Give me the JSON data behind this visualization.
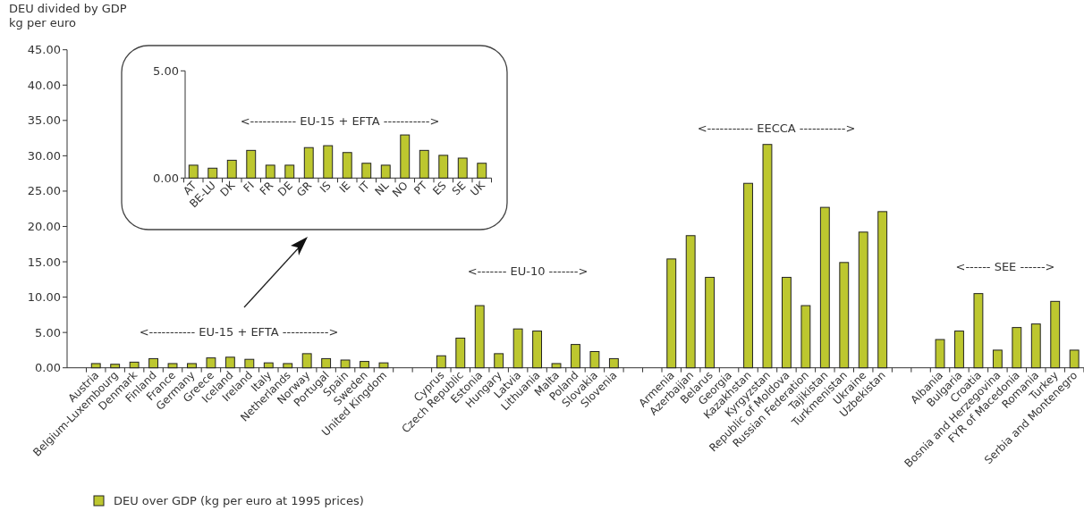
{
  "chart_data": [
    {
      "type": "bar",
      "title": "DEU divided by GDP",
      "ylabel": "kg per euro",
      "categories": [
        "Austria",
        "Belgium-Luxembourg",
        "Denmark",
        "Finland",
        "France",
        "Germany",
        "Greece",
        "Iceland",
        "Ireland",
        "Italy",
        "Netherlands",
        "Norway",
        "Portugal",
        "Spain",
        "Sweden",
        "United Kingdom",
        null,
        null,
        "Cyprus",
        "Czech Republic",
        "Estonia",
        "Hungary",
        "Latvia",
        "Lithuania",
        "Malta",
        "Poland",
        "Slovakia",
        "Slovenia",
        null,
        null,
        "Armenia",
        "Azerbaijan",
        "Belarus",
        "Georgia",
        "Kazakhstan",
        "Kyrgyzstan",
        "Republic of Moldova",
        "Russian Federation",
        "Tajikistan",
        "Turkmenistan",
        "Ukraine",
        "Uzbekistan",
        null,
        null,
        "Albania",
        "Bulgaria",
        "Croatia",
        "Bosnia and Herzegovina",
        "FYR of Macedonia",
        "Romania",
        "Turkey",
        "Serbia and Montenegro"
      ],
      "series": [
        {
          "name": "DEU over GDP (kg per euro at 1995 prices)",
          "color": "#bdc72f",
          "values": [
            0.6,
            0.5,
            0.8,
            1.3,
            0.6,
            0.6,
            1.4,
            1.5,
            1.2,
            0.7,
            0.6,
            2.0,
            1.3,
            1.1,
            0.9,
            0.7,
            null,
            null,
            1.7,
            4.2,
            8.8,
            2.0,
            5.5,
            5.2,
            0.6,
            3.3,
            2.3,
            1.3,
            null,
            null,
            15.4,
            18.7,
            12.8,
            null,
            26.1,
            31.6,
            12.8,
            8.8,
            22.7,
            14.9,
            19.2,
            22.1,
            null,
            null,
            4.0,
            5.2,
            10.5,
            2.5,
            5.7,
            6.2,
            9.4,
            2.5
          ]
        }
      ],
      "ylim": [
        0,
        45
      ],
      "yticks": [
        {
          "value": 0,
          "label": "0.00"
        },
        {
          "value": 5,
          "label": "5.00"
        },
        {
          "value": 10,
          "label": "10.00"
        },
        {
          "value": 15,
          "label": "15.00"
        },
        {
          "value": 20,
          "label": "20.00"
        },
        {
          "value": 25,
          "label": "25.00"
        },
        {
          "value": 30,
          "label": "30.00"
        },
        {
          "value": 35,
          "label": "35.00"
        },
        {
          "value": 40,
          "label": "40.00"
        },
        {
          "value": 45,
          "label": "45.00"
        }
      ],
      "legend": "bottom left",
      "annotations": [
        "<----------- EU-15 + EFTA ----------->",
        "<------- EU-10 ------->",
        "<----------- EECCA ----------->",
        "<------ SEE ------>"
      ]
    },
    {
      "type": "bar",
      "categories": [
        "AT",
        "BE-LU",
        "DK",
        "FI",
        "FR",
        "DE",
        "GR",
        "IS",
        "IE",
        "IT",
        "NL",
        "NO",
        "PT",
        "ES",
        "SE",
        "UK"
      ],
      "values": [
        0.6,
        0.46,
        0.83,
        1.29,
        0.6,
        0.6,
        1.42,
        1.51,
        1.19,
        0.69,
        0.6,
        2.01,
        1.29,
        1.06,
        0.93,
        0.69
      ],
      "color": "#bdc72f",
      "ylim": [
        0,
        5
      ],
      "yticks": [
        {
          "value": 0,
          "label": "0.00"
        },
        {
          "value": 5,
          "label": "5.00"
        }
      ],
      "annotations": [
        "<----------- EU-15 + EFTA ----------->"
      ]
    }
  ]
}
